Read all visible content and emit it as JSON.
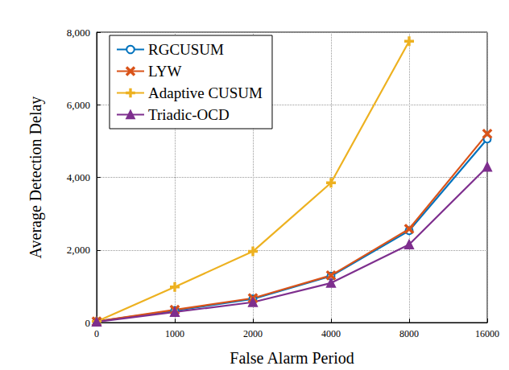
{
  "chart_data": {
    "type": "line",
    "x_label": "False Alarm Period",
    "y_label": "Average Detection Delay",
    "categories": [
      "0",
      "1000",
      "2000",
      "4000",
      "8000",
      "16000"
    ],
    "ylim": [
      0,
      8000
    ],
    "yticks": [
      0,
      {
        "value": 2000,
        "label": "2,000"
      },
      {
        "value": 4000,
        "label": "4,000"
      },
      {
        "value": 6000,
        "label": "6,000"
      },
      {
        "value": 8000,
        "label": "8,000"
      }
    ],
    "grid": true,
    "legend": "upper left",
    "series": [
      {
        "name": "RGCUSUM",
        "color": "#0072BD",
        "marker": "circle",
        "values": [
          30,
          330,
          650,
          1280,
          2530,
          5060
        ]
      },
      {
        "name": "LYW",
        "color": "#D95319",
        "marker": "x",
        "values": [
          30,
          350,
          670,
          1300,
          2580,
          5200
        ]
      },
      {
        "name": "Adaptive CUSUM",
        "color": "#EDB120",
        "marker": "plus",
        "values": [
          30,
          980,
          1960,
          3850,
          7750,
          null
        ]
      },
      {
        "name": "Triadic-OCD",
        "color": "#7E2F8E",
        "marker": "triangle",
        "values": [
          20,
          290,
          560,
          1090,
          2150,
          4290
        ]
      }
    ]
  }
}
